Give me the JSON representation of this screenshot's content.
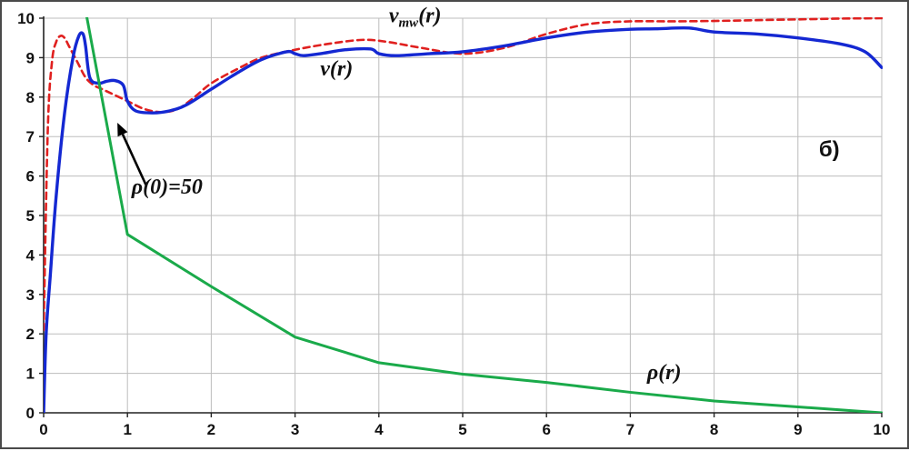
{
  "chart_data": {
    "type": "line",
    "title": "",
    "xlabel": "",
    "ylabel": "",
    "xlim": [
      0,
      10
    ],
    "ylim": [
      0,
      10
    ],
    "x_ticks": [
      "0",
      "1",
      "2",
      "3",
      "4",
      "5",
      "6",
      "7",
      "8",
      "9",
      "10"
    ],
    "y_ticks": [
      "0",
      "1",
      "2",
      "3",
      "4",
      "5",
      "6",
      "7",
      "8",
      "9",
      "10"
    ],
    "grid": true,
    "legend": "none",
    "series": [
      {
        "name": "v_mw(r)",
        "color": "#e0201f",
        "style": "dashed",
        "x": [
          0,
          0.05,
          0.1,
          0.15,
          0.2,
          0.25,
          0.3,
          0.4,
          0.5,
          0.6,
          0.7,
          0.8,
          1.0,
          1.2,
          1.4,
          1.6,
          1.8,
          2.0,
          2.3,
          2.6,
          3.0,
          3.4,
          3.8,
          4.1,
          4.5,
          5.0,
          5.5,
          6.0,
          6.5,
          7.0,
          7.5,
          8.0,
          8.5,
          9.0,
          9.5,
          10.0
        ],
        "y": [
          2.1,
          7.2,
          8.9,
          9.4,
          9.55,
          9.5,
          9.3,
          8.9,
          8.5,
          8.3,
          8.2,
          8.1,
          7.9,
          7.7,
          7.62,
          7.7,
          8.0,
          8.35,
          8.7,
          9.0,
          9.2,
          9.35,
          9.45,
          9.4,
          9.25,
          9.1,
          9.25,
          9.6,
          9.85,
          9.92,
          9.92,
          9.93,
          9.95,
          9.97,
          9.99,
          10.0
        ]
      },
      {
        "name": "v(r)",
        "color": "#1428d2",
        "style": "solid",
        "x": [
          0,
          0.03,
          0.08,
          0.15,
          0.25,
          0.35,
          0.42,
          0.47,
          0.5,
          0.55,
          0.65,
          0.75,
          0.85,
          0.95,
          1.0,
          1.1,
          1.3,
          1.5,
          1.7,
          2.0,
          2.3,
          2.6,
          2.9,
          3.0,
          3.1,
          3.3,
          3.6,
          3.9,
          4.0,
          4.2,
          4.6,
          5.0,
          5.5,
          6.0,
          6.5,
          7.0,
          7.3,
          7.7,
          8.0,
          8.5,
          9.0,
          9.5,
          9.8,
          10.0
        ],
        "y": [
          0,
          2.0,
          3.5,
          5.5,
          7.6,
          9.0,
          9.55,
          9.6,
          9.3,
          8.5,
          8.35,
          8.4,
          8.42,
          8.3,
          7.9,
          7.65,
          7.6,
          7.65,
          7.8,
          8.2,
          8.6,
          8.95,
          9.15,
          9.1,
          9.05,
          9.1,
          9.2,
          9.22,
          9.1,
          9.05,
          9.1,
          9.15,
          9.3,
          9.5,
          9.65,
          9.72,
          9.73,
          9.75,
          9.65,
          9.6,
          9.5,
          9.35,
          9.15,
          8.75
        ]
      },
      {
        "name": "ρ(r)",
        "color": "#1aaa4a",
        "style": "solid",
        "x": [
          0.5,
          1.0,
          2.0,
          3.0,
          4.0,
          5.0,
          6.0,
          7.0,
          8.0,
          9.0,
          10.0
        ],
        "y": [
          10.2,
          4.52,
          3.2,
          1.92,
          1.27,
          0.98,
          0.77,
          0.52,
          0.3,
          0.15,
          0.0
        ]
      }
    ],
    "annotations": [
      {
        "text": "v",
        "sub": "mw",
        "tail": "(r)",
        "x": 4.12,
        "y": 9.9
      },
      {
        "text": "v(r)",
        "x": 3.3,
        "y": 8.55
      },
      {
        "text": "ρ(r)",
        "x": 7.2,
        "y": 0.85
      },
      {
        "text": "ρ(0)=50",
        "x": 1.05,
        "y": 5.55
      },
      {
        "text": "б)",
        "x": 9.25,
        "y": 6.5
      }
    ],
    "arrow": {
      "from": [
        1.22,
        5.78
      ],
      "to": [
        0.88,
        7.35
      ]
    }
  }
}
